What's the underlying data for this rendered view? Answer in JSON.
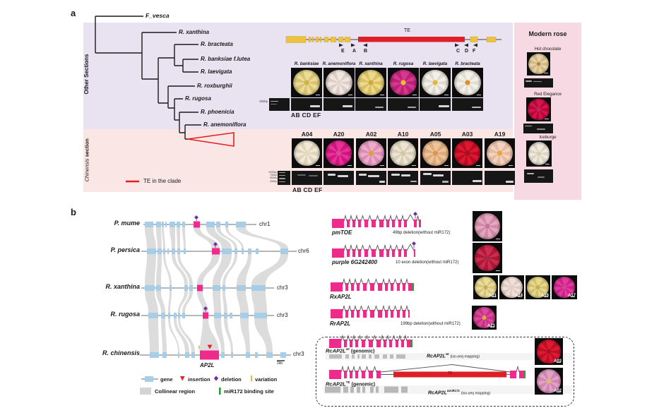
{
  "figure": {
    "panel_a_label": "a",
    "panel_b_label": "b"
  },
  "colors": {
    "lavender_bg": "#e9e2f1",
    "chinensis_bg": "#fbe6e6",
    "modern_bg": "#f7d9e3",
    "te_red": "#df1f26",
    "exon_yellow": "#edc23c",
    "gene_blue": "#a6cee8",
    "ap2l_pink": "#ee2a8b",
    "collinear_gray": "#dcdcdc",
    "deletion_purple": "#7030a0",
    "variation_yellow": "#f0b840",
    "mir172_green": "#2e9e3a"
  },
  "panel_a": {
    "tree": {
      "outgroup": "F_vesca",
      "species": [
        "R. xanthina",
        "R. bracteata",
        "R. banksiae f.lutea",
        "R. laevigata",
        "R. roxburghii",
        "R. rugosa",
        "R. phoenicia",
        "R. anemoniflora"
      ],
      "other_sections": "Other Sections",
      "chinensis_italic": "Chinensis",
      "chinensis_bold": "section",
      "te_legend": "TE in the clade"
    },
    "gene_model": {
      "te": "TE",
      "primers": [
        "E",
        "A",
        "B",
        "C",
        "D",
        "F"
      ]
    },
    "wild_panel": {
      "species": [
        "R. banksiae",
        "R. anemoniflora",
        "R. xanthina",
        "R. rugosa",
        "R. laevigata",
        "R. bracteata"
      ],
      "marker": "500bp",
      "primer_pairs": "AB CD EF"
    },
    "accession_panel": {
      "accessions": [
        "A04",
        "A20",
        "A02",
        "A10",
        "A05",
        "A03",
        "A19"
      ],
      "ladder": [
        "1000bp",
        "750bp",
        "500bp",
        "250bp"
      ],
      "primer_pairs": "AB CD EF"
    },
    "modern_rose": {
      "title": "Modern rose",
      "cultivars": [
        "Hot chocolate",
        "Red Elegance",
        "Iceburge"
      ]
    }
  },
  "panel_b": {
    "synteny": [
      {
        "species": "P. mume",
        "chr": "chr1"
      },
      {
        "species": "P. persica",
        "chr": "chr6"
      },
      {
        "species": "R. xanthina",
        "chr": "chr3"
      },
      {
        "species": "R. rugosa",
        "chr": "chr3"
      },
      {
        "species": "R. chinensis",
        "chr": "chr3"
      }
    ],
    "ap2l": "AP2L",
    "scale": "2kb",
    "legend": {
      "gene": "gene",
      "insertion": "insertion",
      "deletion": "deletion",
      "variation": "variation",
      "collinear": "Collinear region",
      "mir172": "miR172 binding site"
    },
    "structures": {
      "pmtoe": {
        "name": "pmTOE",
        "note": "49bp deletion(without miR172)"
      },
      "purple6g": {
        "name": "purple 6G242400",
        "note": "10 exon deletion(without miR172)"
      },
      "rxap2l": {
        "name": "RxAP2L"
      },
      "rrap2l": {
        "name": "RrAP2L",
        "note": "199bp deletion(without miR172)"
      },
      "rc_wt": {
        "name": "RcAP2L",
        "sup": "wt",
        "suffix": "(genomic)"
      },
      "rc_wt_iso": {
        "name": "RcAP2L",
        "sup": "wt",
        "suffix": "(iso-seq mapping)"
      },
      "rc_te": {
        "name": "RcAP2L",
        "sup": "TE",
        "suffix": "(genomic)",
        "te": "TE"
      },
      "rc_iso2": {
        "name": "RcAP2L",
        "sup": "ΔmiR172",
        "suffix": "(iso-seq mapping)"
      }
    },
    "photo_labels": {
      "rx": [
        "A01",
        "A14",
        "A16",
        "A17"
      ],
      "rr": "A21",
      "wt": "A03",
      "te": "A02"
    }
  },
  "flowers": {
    "w1": {
      "petal": "#e9dc96",
      "shade": "#d9c372",
      "center": "#d2b04a"
    },
    "w2": {
      "petal": "#f1e7e2",
      "shade": "#e0cdc5",
      "center": "#e6d6ce"
    },
    "w3": {
      "petal": "#ecd98a",
      "shade": "#dbc066",
      "center": "#cfa640"
    },
    "w4": {
      "petal": "#d63890",
      "shade": "#bc2276",
      "center": "#e8c030"
    },
    "w5": {
      "petal": "#f2efe8",
      "shade": "#e0dbd0",
      "center": "#e6b63a"
    },
    "w6": {
      "petal": "#f3f0ea",
      "shade": "#e3ded3",
      "center": "#de8f28"
    },
    "a04": {
      "petal": "#f0e8d8",
      "shade": "#e0d4b8",
      "center": "#e6dabe"
    },
    "a20": {
      "petal": "#ea2f96",
      "shade": "#ce177e",
      "center": "#d84898"
    },
    "a02": {
      "petal": "#eeaccb",
      "shade": "#de8eb6",
      "center": "#d8a038"
    },
    "a10": {
      "petal": "#ece4d4",
      "shade": "#dbd0b6",
      "center": "#d6c69e"
    },
    "a05": {
      "petal": "#ecc49a",
      "shade": "#dfa97a",
      "center": "#d69a50"
    },
    "a03": {
      "petal": "#dd1830",
      "shade": "#bd0c22",
      "center": "#a61020"
    },
    "a19": {
      "petal": "#f3d3c0",
      "shade": "#e7b9a0",
      "center": "#e6a73a"
    },
    "hot": {
      "petal": "#e6d2a8",
      "shade": "#d4b882",
      "center": "#b78648"
    },
    "red": {
      "petal": "#d81450",
      "shade": "#b60836",
      "center": "#be2656"
    },
    "ice": {
      "petal": "#efe9df",
      "shade": "#ddd4c3",
      "center": "#decda6"
    },
    "pmtoe": {
      "petal": "#e3a8c0",
      "shade": "#d289a9",
      "center": "#c67796"
    },
    "purple6g": {
      "petal": "#cc2c50",
      "shade": "#ae1736",
      "center": "#a62846"
    },
    "x01": {
      "petal": "#e8dc9c",
      "shade": "#d7c67a",
      "center": "#caaa50"
    },
    "x14": {
      "petal": "#f0e0da",
      "shade": "#e0cac2",
      "center": "#e6cebe"
    },
    "x16": {
      "petal": "#e6d88e",
      "shade": "#d5c26e",
      "center": "#c6ae50"
    },
    "x17": {
      "petal": "#e23a9e",
      "shade": "#ca2286",
      "center": "#ce468e"
    },
    "a21": {
      "petal": "#da4a9c",
      "shade": "#c63286",
      "center": "#dfae30"
    },
    "b03": {
      "petal": "#de1a32",
      "shade": "#c00e26",
      "center": "#a81222"
    },
    "b02": {
      "petal": "#e2a2c8",
      "shade": "#d086b2",
      "center": "#dfbe60"
    }
  }
}
